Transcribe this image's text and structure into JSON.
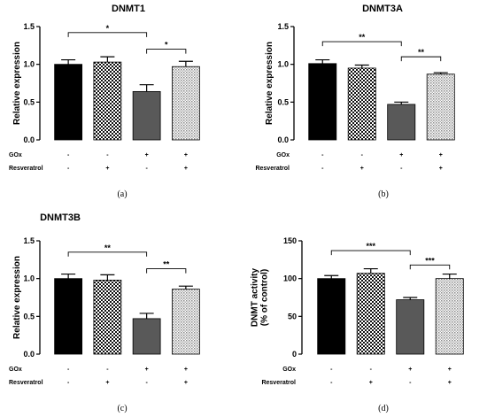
{
  "chart_data": [
    {
      "type": "bar",
      "title": "DNMT1",
      "ylabel": "Relative expression",
      "ylim": [
        0,
        1.5
      ],
      "yticks": [
        "0.0",
        "0.5",
        "1.0",
        "1.5"
      ],
      "panel_label": "(a)",
      "values": [
        1.0,
        1.03,
        0.64,
        0.97
      ],
      "errors": [
        0.06,
        0.07,
        0.09,
        0.07
      ],
      "fills": [
        "black",
        "checker",
        "gray",
        "dots"
      ],
      "conditions": {
        "rows": [
          {
            "label": "GOx",
            "marks": [
              "-",
              "-",
              "+",
              "+"
            ]
          },
          {
            "label": "Resveratrol",
            "marks": [
              "-",
              "+",
              "-",
              "+"
            ]
          }
        ]
      },
      "significance": [
        {
          "from": 0,
          "to": 2,
          "label": "*",
          "level": 1.42
        },
        {
          "from": 2,
          "to": 3,
          "label": "*",
          "level": 1.2
        }
      ]
    },
    {
      "type": "bar",
      "title": "DNMT3A",
      "ylabel": "Relative expression",
      "ylim": [
        0,
        1.5
      ],
      "yticks": [
        "0.0",
        "0.5",
        "1.0",
        "1.5"
      ],
      "panel_label": "(b)",
      "values": [
        1.01,
        0.95,
        0.47,
        0.87
      ],
      "errors": [
        0.05,
        0.04,
        0.03,
        0.02
      ],
      "fills": [
        "black",
        "checker",
        "gray",
        "dots"
      ],
      "conditions": {
        "rows": [
          {
            "label": "GOx",
            "marks": [
              "-",
              "-",
              "+",
              "+"
            ]
          },
          {
            "label": "Resveratrol",
            "marks": [
              "-",
              "+",
              "-",
              "+"
            ]
          }
        ]
      },
      "significance": [
        {
          "from": 0,
          "to": 2,
          "label": "**",
          "level": 1.3
        },
        {
          "from": 2,
          "to": 3,
          "label": "**",
          "level": 1.1
        }
      ]
    },
    {
      "type": "bar",
      "title": "DNMT3B",
      "ylabel": "Relative expression",
      "ylim": [
        0,
        1.5
      ],
      "yticks": [
        "0.0",
        "0.5",
        "1.0",
        "1.5"
      ],
      "panel_label": "(c)",
      "values": [
        1.0,
        0.98,
        0.47,
        0.86
      ],
      "errors": [
        0.06,
        0.07,
        0.07,
        0.04
      ],
      "fills": [
        "black",
        "checker",
        "gray",
        "dots"
      ],
      "conditions": {
        "rows": [
          {
            "label": "GOx",
            "marks": [
              "-",
              "-",
              "+",
              "+"
            ]
          },
          {
            "label": "Resveratrol",
            "marks": [
              "-",
              "+",
              "-",
              "+"
            ]
          }
        ]
      },
      "significance": [
        {
          "from": 0,
          "to": 2,
          "label": "**",
          "level": 1.35
        },
        {
          "from": 2,
          "to": 3,
          "label": "**",
          "level": 1.13
        }
      ]
    },
    {
      "type": "bar",
      "title": "",
      "ylabel": "DNMT activity\n(% of control)",
      "ylim": [
        0,
        150
      ],
      "yticks": [
        "0",
        "50",
        "100",
        "150"
      ],
      "panel_label": "(d)",
      "values": [
        100,
        107,
        72,
        100
      ],
      "errors": [
        4,
        6,
        3,
        6
      ],
      "fills": [
        "black",
        "checker",
        "gray",
        "dots"
      ],
      "conditions": {
        "rows": [
          {
            "label": "GOx",
            "marks": [
              "-",
              "-",
              "+",
              "+"
            ]
          },
          {
            "label": "Resveratrol",
            "marks": [
              "-",
              "+",
              "-",
              "+"
            ]
          }
        ]
      },
      "significance": [
        {
          "from": 0,
          "to": 2,
          "label": "***",
          "level": 137
        },
        {
          "from": 2,
          "to": 3,
          "label": "***",
          "level": 118
        }
      ]
    }
  ]
}
